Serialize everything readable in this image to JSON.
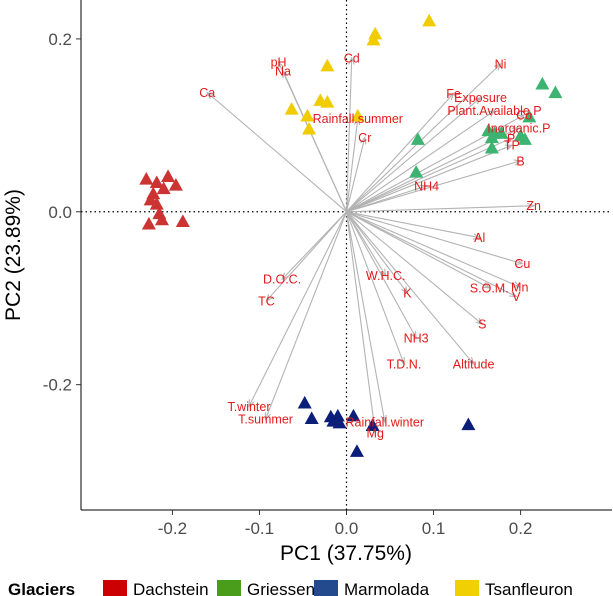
{
  "colors": {
    "Dachstein": "#cc3333",
    "Griessen": "#3cb371",
    "Marmolada": "#0b1f7a",
    "Tsanfleuron": "#f0cc00",
    "arrow": "#b3b3b3",
    "label": "#e31a1c",
    "legend_Dachstein": "#cc0000",
    "legend_Griessen": "#4a9d1a",
    "legend_Marmolada": "#234a8c",
    "legend_Tsanfleuron": "#f0d000"
  },
  "chart_data": {
    "type": "scatter",
    "subtype": "pca-biplot",
    "xlabel": "PC1 (37.75%)",
    "ylabel": "PC2 (23.89%)",
    "xlim": [
      -0.305,
      0.305
    ],
    "ylim": [
      -0.345,
      0.245
    ],
    "xticks": [
      -0.2,
      -0.1,
      0.0,
      0.1,
      0.2
    ],
    "xtick_labels": [
      "-0.2",
      "-0.1",
      "0.0",
      "0.1",
      "0.2"
    ],
    "yticks": [
      -0.2,
      0.0,
      0.2
    ],
    "ytick_labels": [
      "-0.2",
      "0.0",
      "0.2"
    ],
    "grid": false,
    "reference_lines": [
      {
        "axis": "x",
        "value": 0,
        "style": "dotted"
      },
      {
        "axis": "y",
        "value": 0,
        "style": "dotted"
      }
    ],
    "legend": {
      "title": "Glaciers",
      "placement": "bottom",
      "entries": [
        "Dachstein",
        "Griessen",
        "Marmolada",
        "Tsanfleuron"
      ]
    },
    "series": [
      {
        "name": "Dachstein",
        "marker": "triangle",
        "points": [
          [
            -0.23,
            0.037
          ],
          [
            -0.218,
            0.033
          ],
          [
            -0.205,
            0.04
          ],
          [
            -0.196,
            0.03
          ],
          [
            -0.21,
            0.026
          ],
          [
            -0.222,
            0.02
          ],
          [
            -0.225,
            0.013
          ],
          [
            -0.218,
            0.008
          ],
          [
            -0.215,
            -0.003
          ],
          [
            -0.227,
            -0.015
          ],
          [
            -0.188,
            -0.012
          ],
          [
            -0.212,
            -0.01
          ]
        ]
      },
      {
        "name": "Griessen",
        "marker": "triangle",
        "points": [
          [
            0.225,
            0.147
          ],
          [
            0.24,
            0.137
          ],
          [
            0.21,
            0.109
          ],
          [
            0.163,
            0.093
          ],
          [
            0.17,
            0.09
          ],
          [
            0.178,
            0.09
          ],
          [
            0.2,
            0.087
          ],
          [
            0.167,
            0.085
          ],
          [
            0.205,
            0.083
          ],
          [
            0.082,
            0.083
          ],
          [
            0.167,
            0.073
          ],
          [
            0.08,
            0.045
          ]
        ]
      },
      {
        "name": "Marmolada",
        "marker": "triangle",
        "points": [
          [
            -0.048,
            -0.222
          ],
          [
            -0.04,
            -0.24
          ],
          [
            -0.018,
            -0.238
          ],
          [
            -0.01,
            -0.237
          ],
          [
            -0.015,
            -0.243
          ],
          [
            0.008,
            -0.237
          ],
          [
            -0.008,
            -0.245
          ],
          [
            0.03,
            -0.248
          ],
          [
            0.14,
            -0.247
          ],
          [
            0.012,
            -0.278
          ]
        ]
      },
      {
        "name": "Tsanfleuron",
        "marker": "triangle",
        "points": [
          [
            0.095,
            0.22
          ],
          [
            0.033,
            0.205
          ],
          [
            0.031,
            0.198
          ],
          [
            -0.022,
            0.168
          ],
          [
            -0.03,
            0.128
          ],
          [
            -0.022,
            0.126
          ],
          [
            -0.063,
            0.118
          ],
          [
            0.013,
            0.11
          ],
          [
            -0.045,
            0.11
          ],
          [
            -0.043,
            0.095
          ]
        ]
      }
    ],
    "loadings": [
      {
        "name": "pH",
        "x": -0.078,
        "y": 0.173
      },
      {
        "name": "Na",
        "x": -0.073,
        "y": 0.163
      },
      {
        "name": "Cd",
        "x": 0.006,
        "y": 0.178
      },
      {
        "name": "Ca",
        "x": -0.16,
        "y": 0.138
      },
      {
        "name": "Ni",
        "x": 0.177,
        "y": 0.171
      },
      {
        "name": "Fe",
        "x": 0.123,
        "y": 0.137
      },
      {
        "name": "Exposure",
        "x": 0.154,
        "y": 0.132
      },
      {
        "name": "Plant.Available.P",
        "x": 0.17,
        "y": 0.117
      },
      {
        "name": "Co",
        "x": 0.204,
        "y": 0.112
      },
      {
        "name": "Inorganic.P",
        "x": 0.198,
        "y": 0.097
      },
      {
        "name": "P",
        "x": 0.189,
        "y": 0.085
      },
      {
        "name": "TP",
        "x": 0.19,
        "y": 0.077
      },
      {
        "name": "B",
        "x": 0.2,
        "y": 0.059
      },
      {
        "name": "Rainfall.summer",
        "x": 0.013,
        "y": 0.108
      },
      {
        "name": "Cr",
        "x": 0.021,
        "y": 0.086
      },
      {
        "name": "NH4",
        "x": 0.092,
        "y": 0.03
      },
      {
        "name": "Zn",
        "x": 0.215,
        "y": 0.007
      },
      {
        "name": "Al",
        "x": 0.153,
        "y": -0.03
      },
      {
        "name": "Cu",
        "x": 0.202,
        "y": -0.06
      },
      {
        "name": "S.O.M.",
        "x": 0.164,
        "y": -0.088
      },
      {
        "name": "Mn",
        "x": 0.199,
        "y": -0.087
      },
      {
        "name": "V",
        "x": 0.195,
        "y": -0.098
      },
      {
        "name": "S",
        "x": 0.156,
        "y": -0.13
      },
      {
        "name": "W.H.C.",
        "x": 0.045,
        "y": -0.074
      },
      {
        "name": "K",
        "x": 0.07,
        "y": -0.094
      },
      {
        "name": "NH3",
        "x": 0.08,
        "y": -0.146
      },
      {
        "name": "T.D.N.",
        "x": 0.066,
        "y": -0.176
      },
      {
        "name": "Altitude",
        "x": 0.146,
        "y": -0.176
      },
      {
        "name": "D.O.C.",
        "x": -0.074,
        "y": -0.078
      },
      {
        "name": "TC",
        "x": -0.092,
        "y": -0.103
      },
      {
        "name": "T.winter",
        "x": -0.112,
        "y": -0.225
      },
      {
        "name": "T.summer",
        "x": -0.093,
        "y": -0.24
      },
      {
        "name": "Rainfall.winter",
        "x": 0.044,
        "y": -0.243
      },
      {
        "name": "Mg",
        "x": 0.033,
        "y": -0.256
      }
    ]
  }
}
